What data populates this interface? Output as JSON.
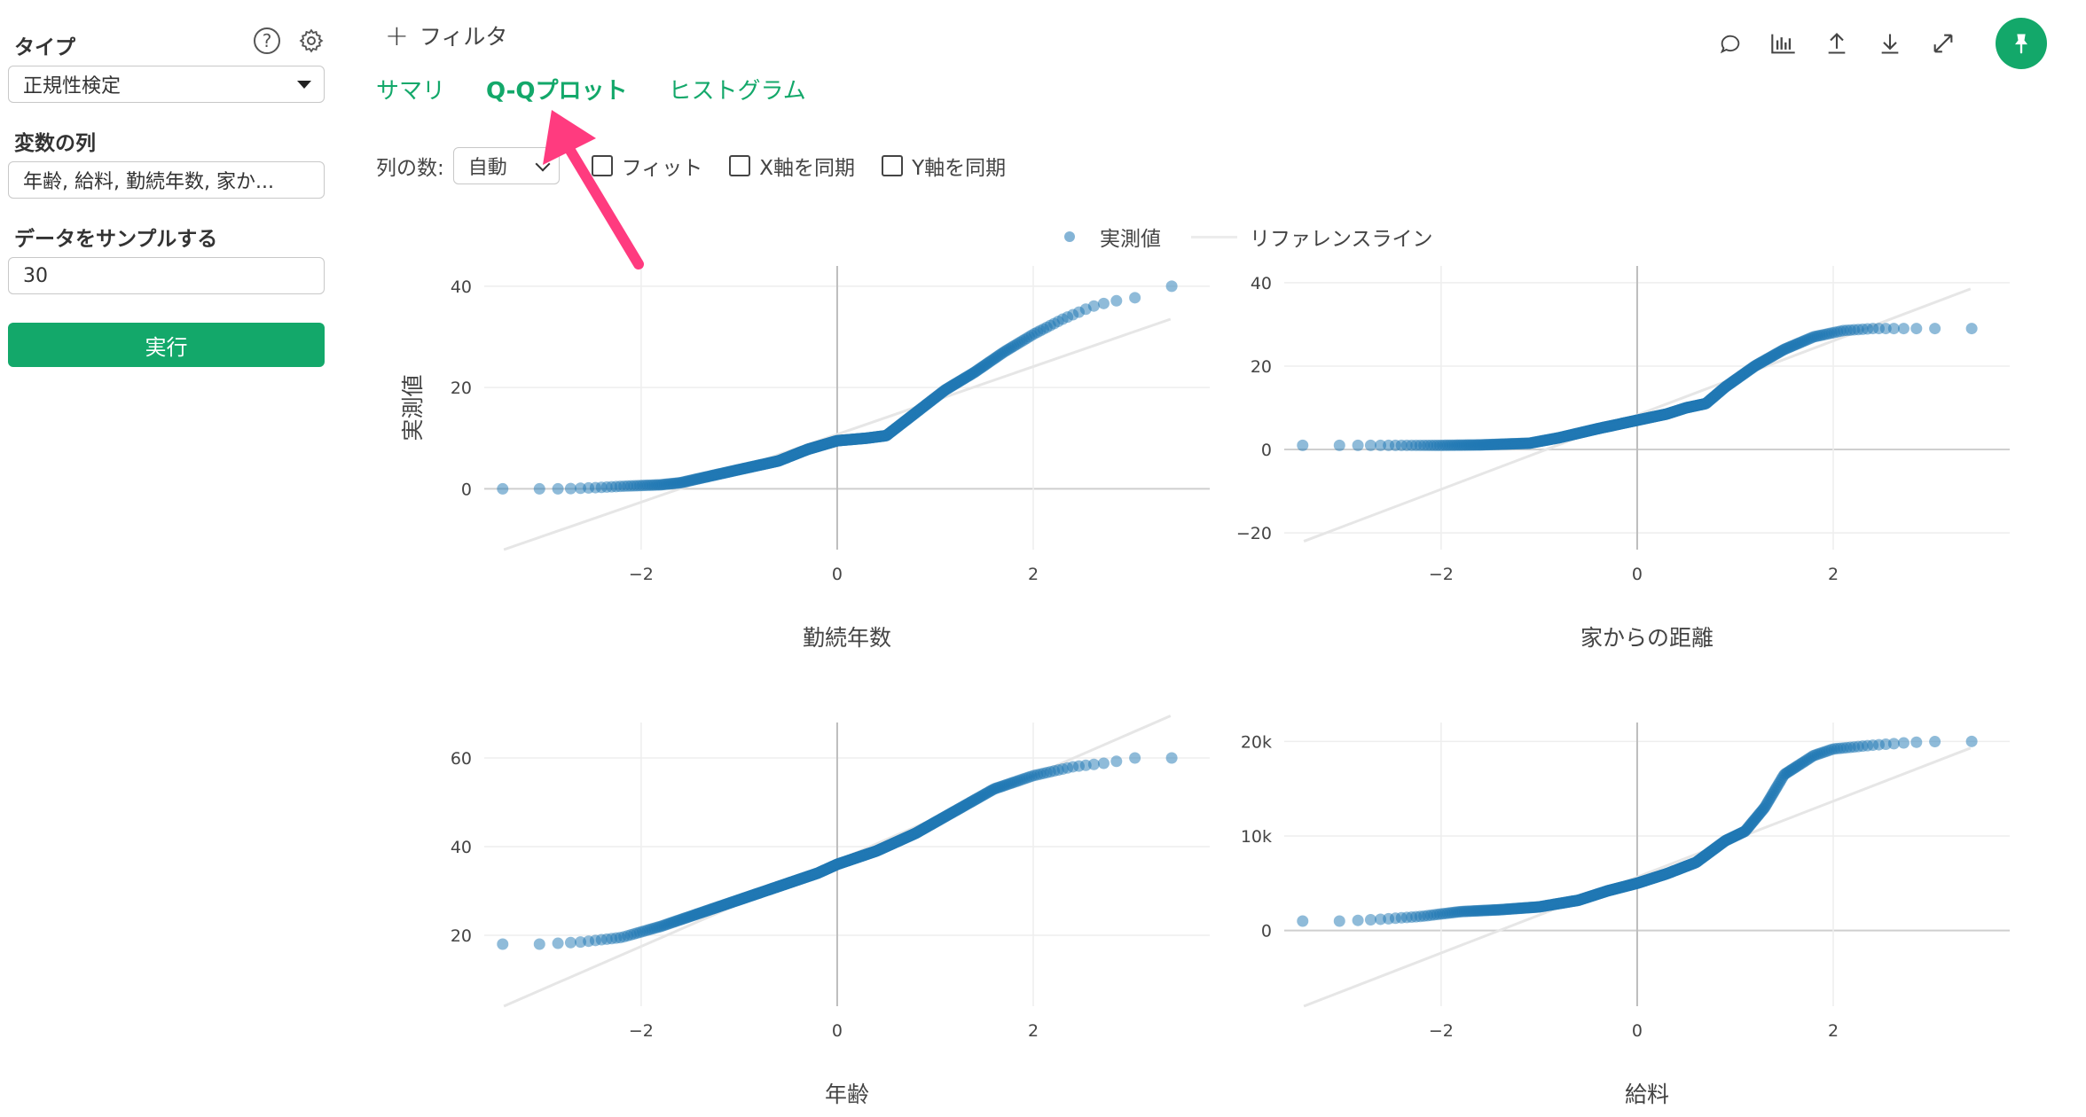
{
  "sidebar": {
    "type_label": "タイプ",
    "type_value": "正規性検定",
    "var_label": "変数の列",
    "var_value": "年齢, 給料, 勤続年数, 家か...",
    "sample_label": "データをサンプルする",
    "sample_value": "30",
    "run_label": "実行",
    "help_icon": "question-circle-icon",
    "settings_icon": "gear-icon"
  },
  "topbar": {
    "filter_label": "フィルタ",
    "icons": [
      "comment-icon",
      "bar-chart-icon",
      "upload-icon",
      "download-icon",
      "expand-icon",
      "pin-icon"
    ],
    "accent": "#13a86a"
  },
  "tabs": [
    {
      "label": "サマリ",
      "active": false
    },
    {
      "label": "Q-Qプロット",
      "active": true
    },
    {
      "label": "ヒストグラム",
      "active": false
    }
  ],
  "options": {
    "columns_label": "列の数:",
    "columns_value": "自動",
    "fit_label": "フィット",
    "sync_x_label": "X軸を同期",
    "sync_y_label": "Y軸を同期"
  },
  "legend": {
    "observed": "実測値",
    "reference": "リファレンスライン"
  },
  "annotation": {
    "type": "arrow",
    "color": "#ff3b7f",
    "points_to": "tab-qq-plot"
  },
  "chart_data": [
    {
      "type": "scatter",
      "title": "勤続年数",
      "ylabel": "実測値",
      "xlim": [
        -3.6,
        3.8
      ],
      "ylim": [
        -12,
        44
      ],
      "xticks": [
        -2,
        0,
        2
      ],
      "yticks": [
        0,
        20,
        40
      ],
      "xtick_labels": [
        "−2",
        "0",
        "2"
      ],
      "ytick_labels": [
        "0",
        "20",
        "40"
      ],
      "quantiles": [
        [
          -3.4,
          0
        ],
        [
          -3.1,
          0
        ],
        [
          -2.8,
          0
        ],
        [
          -2.5,
          0.2
        ],
        [
          -2.2,
          0.5
        ],
        [
          -1.8,
          0.8
        ],
        [
          -1.6,
          1.2
        ],
        [
          -1.3,
          2.5
        ],
        [
          -1.0,
          3.8
        ],
        [
          -0.6,
          5.5
        ],
        [
          -0.3,
          7.8
        ],
        [
          0,
          9.5
        ],
        [
          0.3,
          10
        ],
        [
          0.5,
          10.5
        ],
        [
          0.8,
          15
        ],
        [
          1.1,
          19.5
        ],
        [
          1.4,
          23
        ],
        [
          1.7,
          27
        ],
        [
          2.0,
          30.5
        ],
        [
          2.3,
          33.5
        ],
        [
          2.6,
          36
        ],
        [
          2.8,
          37
        ],
        [
          3.0,
          37.5
        ],
        [
          3.4,
          40
        ]
      ],
      "reference": [
        [
          -3.4,
          -12
        ],
        [
          3.4,
          33.5
        ]
      ]
    },
    {
      "type": "scatter",
      "title": "家からの距離",
      "xlim": [
        -3.6,
        3.8
      ],
      "ylim": [
        -24,
        44
      ],
      "xticks": [
        -2,
        0,
        2
      ],
      "yticks": [
        -20,
        0,
        20,
        40
      ],
      "xtick_labels": [
        "−2",
        "0",
        "2"
      ],
      "ytick_labels": [
        "−20",
        "0",
        "20",
        "40"
      ],
      "quantiles": [
        [
          -3.4,
          1
        ],
        [
          -3.1,
          1
        ],
        [
          -2.7,
          1
        ],
        [
          -2.4,
          1
        ],
        [
          -2.0,
          1
        ],
        [
          -1.6,
          1.1
        ],
        [
          -1.1,
          1.5
        ],
        [
          -0.8,
          2.8
        ],
        [
          -0.4,
          5
        ],
        [
          0,
          7
        ],
        [
          0.3,
          8.5
        ],
        [
          0.5,
          10
        ],
        [
          0.7,
          11
        ],
        [
          0.9,
          15
        ],
        [
          1.2,
          20
        ],
        [
          1.5,
          24
        ],
        [
          1.8,
          27
        ],
        [
          2.1,
          28.5
        ],
        [
          2.4,
          29
        ],
        [
          2.7,
          29
        ],
        [
          3.0,
          29
        ],
        [
          3.4,
          29
        ]
      ],
      "reference": [
        [
          -3.4,
          -22
        ],
        [
          3.4,
          38.5
        ]
      ]
    },
    {
      "type": "scatter",
      "title": "年齢",
      "xlim": [
        -3.6,
        3.8
      ],
      "ylim": [
        4,
        68
      ],
      "xticks": [
        -2,
        0,
        2
      ],
      "yticks": [
        20,
        40,
        60
      ],
      "xtick_labels": [
        "−2",
        "0",
        "2"
      ],
      "ytick_labels": [
        "20",
        "40",
        "60"
      ],
      "quantiles": [
        [
          -3.4,
          18
        ],
        [
          -3.0,
          18
        ],
        [
          -2.6,
          18.5
        ],
        [
          -2.2,
          19.5
        ],
        [
          -1.8,
          22
        ],
        [
          -1.4,
          25
        ],
        [
          -1.0,
          28
        ],
        [
          -0.6,
          31
        ],
        [
          -0.2,
          34
        ],
        [
          0,
          36
        ],
        [
          0.4,
          39
        ],
        [
          0.8,
          43
        ],
        [
          1.2,
          48
        ],
        [
          1.6,
          53
        ],
        [
          2.0,
          56
        ],
        [
          2.4,
          58
        ],
        [
          2.8,
          59
        ],
        [
          3.0,
          60
        ],
        [
          3.4,
          60
        ]
      ],
      "reference": [
        [
          -3.4,
          4
        ],
        [
          3.4,
          69.5
        ]
      ]
    },
    {
      "type": "scatter",
      "title": "給料",
      "xlim": [
        -3.6,
        3.8
      ],
      "ylim": [
        -8000,
        22000
      ],
      "xticks": [
        -2,
        0,
        2
      ],
      "yticks": [
        0,
        10000,
        20000
      ],
      "xtick_labels": [
        "−2",
        "0",
        "2"
      ],
      "ytick_labels": [
        "0",
        "10k",
        "20k"
      ],
      "quantiles": [
        [
          -3.4,
          1000
        ],
        [
          -3.0,
          1000
        ],
        [
          -2.6,
          1200
        ],
        [
          -2.2,
          1500
        ],
        [
          -1.8,
          2000
        ],
        [
          -1.4,
          2200
        ],
        [
          -1.0,
          2500
        ],
        [
          -0.6,
          3200
        ],
        [
          -0.3,
          4200
        ],
        [
          0,
          5000
        ],
        [
          0.3,
          6000
        ],
        [
          0.6,
          7200
        ],
        [
          0.9,
          9500
        ],
        [
          1.1,
          10500
        ],
        [
          1.3,
          13000
        ],
        [
          1.5,
          16500
        ],
        [
          1.8,
          18500
        ],
        [
          2.0,
          19200
        ],
        [
          2.4,
          19600
        ],
        [
          2.8,
          19900
        ],
        [
          3.1,
          20000
        ]
      ],
      "reference": [
        [
          -3.4,
          -8000
        ],
        [
          3.4,
          19300
        ]
      ]
    }
  ]
}
